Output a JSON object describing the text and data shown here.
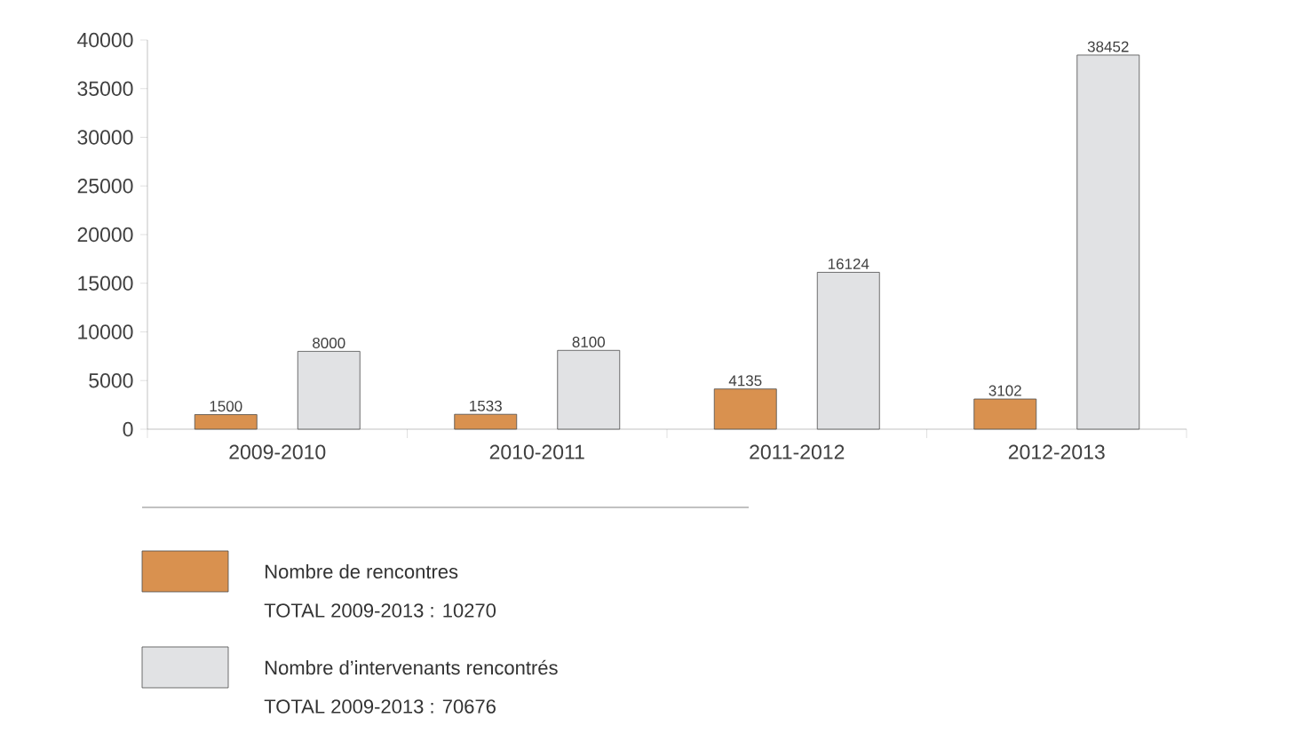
{
  "chart_data": {
    "type": "bar",
    "categories": [
      "2009-2010",
      "2010-2011",
      "2011-2012",
      "2012-2013"
    ],
    "series": [
      {
        "name": "Nombre de rencontres",
        "color": "#d9914f",
        "values": [
          1500,
          1533,
          4135,
          3102
        ]
      },
      {
        "name": "Nombre d’intervenants rencontrés",
        "color": "#e1e2e4",
        "values": [
          8000,
          8100,
          16124,
          38452
        ]
      }
    ],
    "ylim": [
      0,
      40000
    ],
    "yticks": [
      0,
      5000,
      10000,
      15000,
      20000,
      25000,
      30000,
      35000,
      40000
    ],
    "data_labels": true,
    "legend": "bottom left",
    "annotations": [
      "TOTAL 2009-2013 : 10270",
      "TOTAL 2009-2013 : 70676"
    ]
  }
}
